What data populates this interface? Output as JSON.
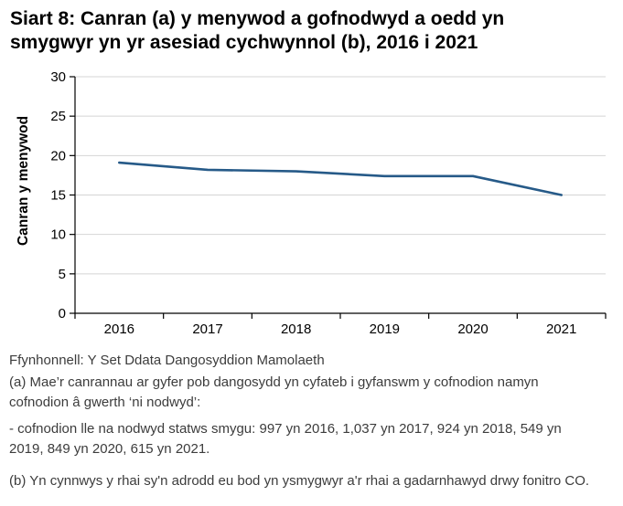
{
  "title": "Siart 8: Canran (a) y menywod a gofnodwyd a oedd yn\nsmygwyr yn yr asesiad cychwynnol (b), 2016 i 2021",
  "chart_data": {
    "type": "line",
    "categories": [
      "2016",
      "2017",
      "2018",
      "2019",
      "2020",
      "2021"
    ],
    "values": [
      19.1,
      18.2,
      18.0,
      17.4,
      17.4,
      15.0
    ],
    "title": "Siart 8: Canran (a) y menywod a gofnodwyd a oedd yn smygwyr yn yr asesiad cychwynnol (b), 2016 i 2021",
    "xlabel": "",
    "ylabel": "Canran y menywod",
    "ylim": [
      0,
      30
    ],
    "ytick_step": 5,
    "grid": true,
    "legend": false,
    "line_color": "#265a88",
    "gridline_color": "#d4d4d4",
    "axis_color": "#000000"
  },
  "footer": {
    "source": "Ffynhonnell: Y Set Ddata Dangosyddion Mamolaeth",
    "note_a": "(a) Mae’r canrannau ar gyfer pob dangosydd yn cyfateb i gyfanswm y cofnodion namyn\ncofnodion â gwerth ‘ni nodwyd’:",
    "note_a_detail": "- cofnodion lle na nodwyd statws smygu: 997 yn 2016, 1,037 yn 2017, 924 yn 2018, 549 yn\n2019, 849 yn 2020, 615 yn 2021.",
    "note_b": "(b) Yn cynnwys y rhai sy'n adrodd eu bod yn ysmygwyr a'r rhai a gadarnhawyd drwy fonitro CO."
  }
}
